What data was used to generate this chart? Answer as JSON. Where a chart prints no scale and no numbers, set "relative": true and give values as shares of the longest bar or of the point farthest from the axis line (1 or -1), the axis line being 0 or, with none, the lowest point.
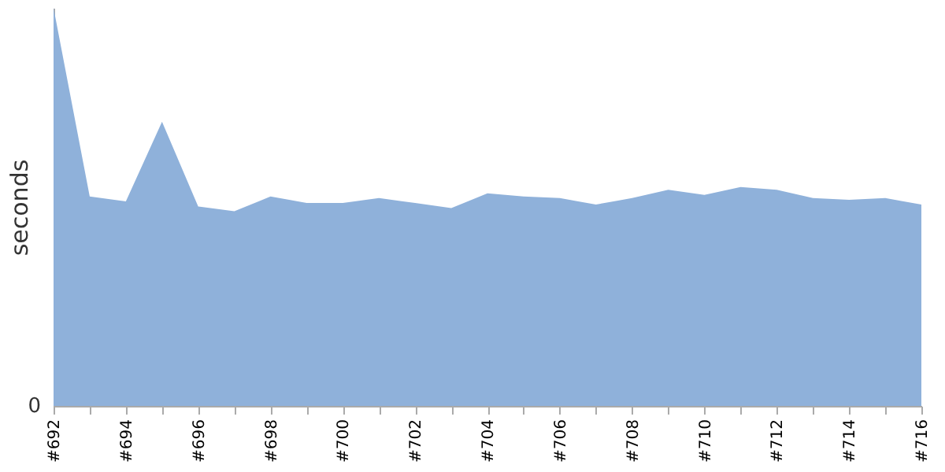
{
  "chart_data": {
    "type": "area",
    "ylabel": "seconds",
    "relative": true,
    "annotations": [
      "0"
    ],
    "color": "#8fb1da",
    "categories": [
      "#692",
      null,
      "#694",
      null,
      "#696",
      null,
      "#698",
      null,
      "#700",
      null,
      "#702",
      null,
      "#704",
      null,
      "#706",
      null,
      "#708",
      null,
      "#710",
      null,
      "#712",
      null,
      "#714",
      null,
      "#716"
    ],
    "values": [
      1,
      0.526,
      0.514,
      0.714,
      0.501,
      0.489,
      0.526,
      0.51,
      0.51,
      0.522,
      0.51,
      0.497,
      0.534,
      0.526,
      0.522,
      0.506,
      0.522,
      0.543,
      0.53,
      0.55,
      0.543,
      0.522,
      0.518,
      0.522,
      0.506
    ]
  }
}
